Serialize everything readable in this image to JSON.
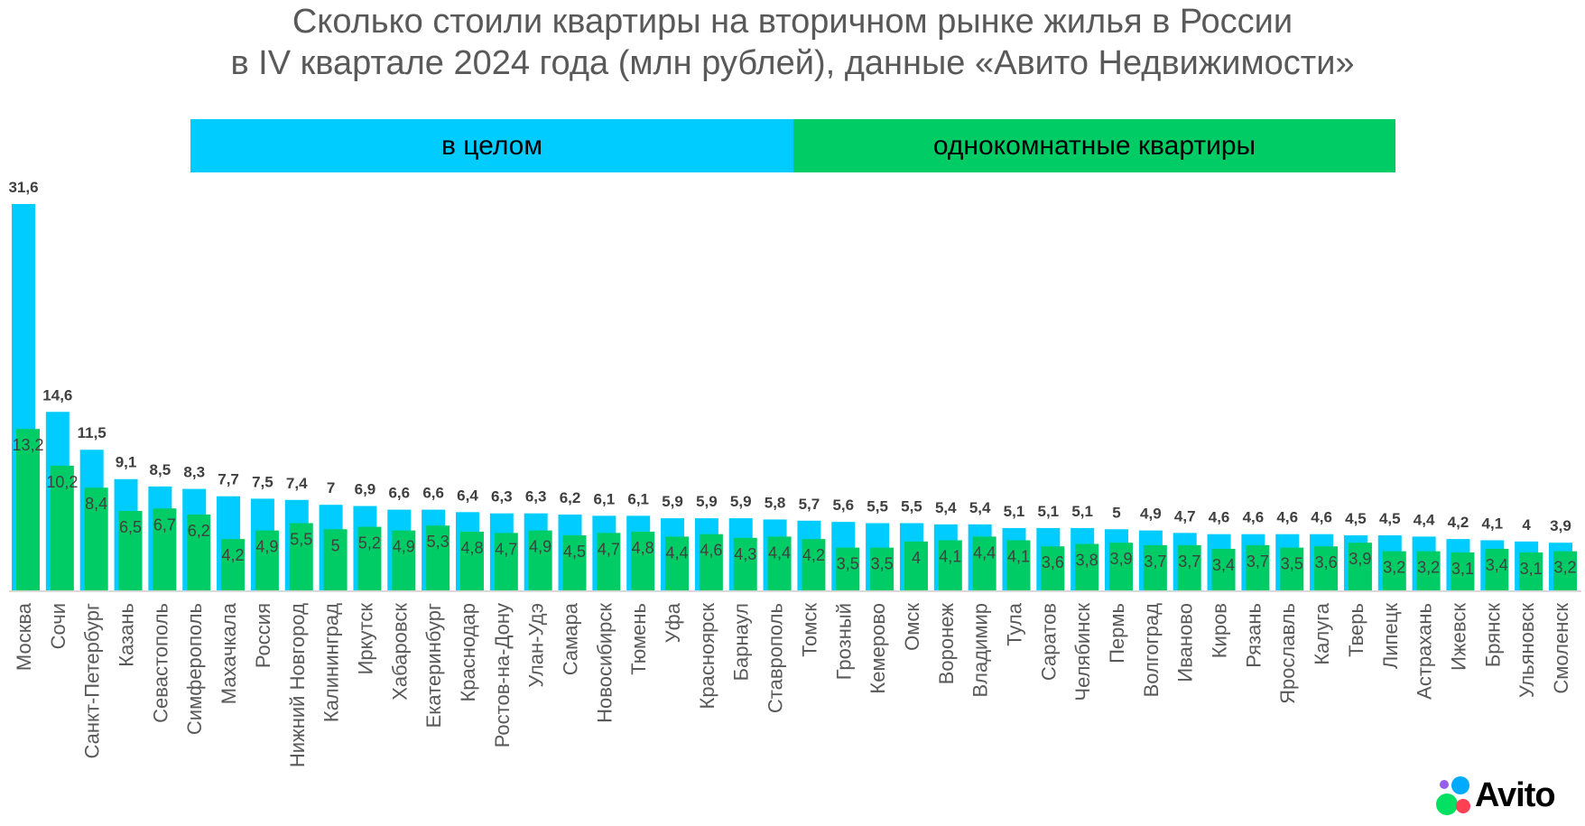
{
  "colors": {
    "overall": "#00CCFF",
    "one_room": "#00CC66",
    "label": "#404040",
    "axis": "#D9D9D9",
    "title": "#595959"
  },
  "title_lines": [
    "Сколько стоили квартиры на вторичном рынке жилья в России",
    "в IV квартале 2024 года (млн рублей), данные «Авито Недвижимости»"
  ],
  "logo": {
    "text": "Avito"
  },
  "chart_data": {
    "type": "bar",
    "title": "Сколько стоили квартиры на вторичном рынке жилья в России в IV квартале 2024 года (млн рублей), данные «Авито Недвижимости»",
    "xlabel": "",
    "ylabel": "",
    "ylim": [
      0,
      31.6
    ],
    "grid": false,
    "legend_position": "top",
    "categories": [
      "Москва",
      "Сочи",
      "Санкт-Петербург",
      "Казань",
      "Севастополь",
      "Симферополь",
      "Махачкала",
      "Россия",
      "Нижний Новгород",
      "Калининград",
      "Иркутск",
      "Хабаровск",
      "Екатеринбург",
      "Краснодар",
      "Ростов-на-Дону",
      "Улан-Удэ",
      "Самара",
      "Новосибирск",
      "Тюмень",
      "Уфа",
      "Красноярск",
      "Барнаул",
      "Ставрополь",
      "Томск",
      "Грозный",
      "Кемерово",
      "Омск",
      "Воронеж",
      "Владимир",
      "Тула",
      "Саратов",
      "Челябинск",
      "Пермь",
      "Волгоград",
      "Иваново",
      "Киров",
      "Рязань",
      "Ярославль",
      "Калуга",
      "Тверь",
      "Липецк",
      "Астрахань",
      "Ижевск",
      "Брянск",
      "Ульяновск",
      "Смоленск"
    ],
    "series": [
      {
        "name": "в целом",
        "values": [
          31.6,
          14.6,
          11.5,
          9.1,
          8.5,
          8.3,
          7.7,
          7.5,
          7.4,
          7,
          6.9,
          6.6,
          6.6,
          6.4,
          6.3,
          6.3,
          6.2,
          6.1,
          6.1,
          5.9,
          5.9,
          5.9,
          5.8,
          5.7,
          5.6,
          5.5,
          5.5,
          5.4,
          5.4,
          5.1,
          5.1,
          5.1,
          5,
          4.9,
          4.7,
          4.6,
          4.6,
          4.6,
          4.6,
          4.5,
          4.5,
          4.4,
          4.2,
          4.1,
          4,
          3.9
        ],
        "labels": [
          "31,6",
          "14,6",
          "11,5",
          "9,1",
          "8,5",
          "8,3",
          "7,7",
          "7,5",
          "7,4",
          "7",
          "6,9",
          "6,6",
          "6,6",
          "6,4",
          "6,3",
          "6,3",
          "6,2",
          "6,1",
          "6,1",
          "5,9",
          "5,9",
          "5,9",
          "5,8",
          "5,7",
          "5,6",
          "5,5",
          "5,5",
          "5,4",
          "5,4",
          "5,1",
          "5,1",
          "5,1",
          "5",
          "4,9",
          "4,7",
          "4,6",
          "4,6",
          "4,6",
          "4,6",
          "4,5",
          "4,5",
          "4,4",
          "4,2",
          "4,1",
          "4",
          "3,9"
        ]
      },
      {
        "name": "однокомнатные квартиры",
        "values": [
          13.2,
          10.2,
          8.4,
          6.5,
          6.7,
          6.2,
          4.2,
          4.9,
          5.5,
          5,
          5.2,
          4.9,
          5.3,
          4.8,
          4.7,
          4.9,
          4.5,
          4.7,
          4.8,
          4.4,
          4.6,
          4.3,
          4.4,
          4.2,
          3.5,
          3.5,
          4,
          4.1,
          4.4,
          4.1,
          3.6,
          3.8,
          3.9,
          3.7,
          3.7,
          3.4,
          3.7,
          3.5,
          3.6,
          3.9,
          3.2,
          3.2,
          3.1,
          3.4,
          3.1,
          3.2
        ],
        "labels": [
          "13,2",
          "10,2",
          "8,4",
          "6,5",
          "6,7",
          "6,2",
          "4,2",
          "4,9",
          "5,5",
          "5",
          "5,2",
          "4,9",
          "5,3",
          "4,8",
          "4,7",
          "4,9",
          "4,5",
          "4,7",
          "4,8",
          "4,4",
          "4,6",
          "4,3",
          "4,4",
          "4,2",
          "3,5",
          "3,5",
          "4",
          "4,1",
          "4,4",
          "4,1",
          "3,6",
          "3,8",
          "3,9",
          "3,7",
          "3,7",
          "3,4",
          "3,7",
          "3,5",
          "3,6",
          "3,9",
          "3,2",
          "3,2",
          "3,1",
          "3,4",
          "3,1",
          "3,2"
        ]
      }
    ]
  }
}
